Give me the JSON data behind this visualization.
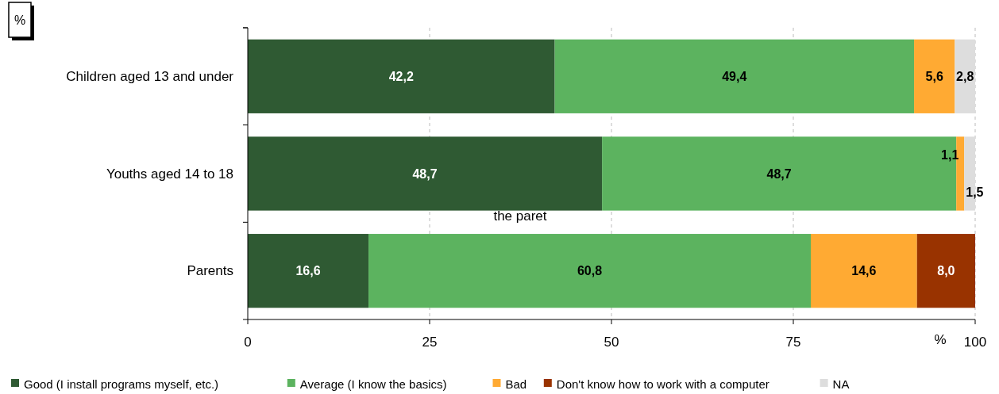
{
  "chart_data": {
    "type": "bar",
    "orientation": "horizontal",
    "stacked": true,
    "xlabel": "%",
    "annotations": [
      "%",
      "the paret"
    ],
    "categories": [
      "Children aged 13 and under",
      "Youths aged 14 to 18",
      "Parents"
    ],
    "series": [
      {
        "name": "Good (I install programs myself, etc.)",
        "color": "#2f5a33",
        "values": [
          42.2,
          48.7,
          16.6
        ],
        "value_labels": [
          "42,2",
          "48,7",
          "16,6"
        ]
      },
      {
        "name": "Average (I know the basics)",
        "color": "#5cb35f",
        "values": [
          49.4,
          48.7,
          60.8
        ],
        "value_labels": [
          "49,4",
          "48,7",
          "60,8"
        ]
      },
      {
        "name": "Bad",
        "color": "#ffaa33",
        "values": [
          5.6,
          1.1,
          14.6
        ],
        "value_labels": [
          "5,6",
          "1,1",
          "14,6"
        ]
      },
      {
        "name": "Don't know how to work with a computer",
        "color": "#993300",
        "values": [
          null,
          null,
          8.0
        ],
        "value_labels": [
          null,
          null,
          "8,0"
        ]
      },
      {
        "name": "NA",
        "color": "#dddddd",
        "values": [
          2.8,
          1.5,
          null
        ],
        "value_labels": [
          "2,8",
          "1,5",
          null
        ]
      }
    ],
    "xlim": [
      0,
      100
    ],
    "xticks": [
      0,
      25,
      50,
      75,
      100
    ],
    "grid": "x",
    "legend": "bottom"
  }
}
